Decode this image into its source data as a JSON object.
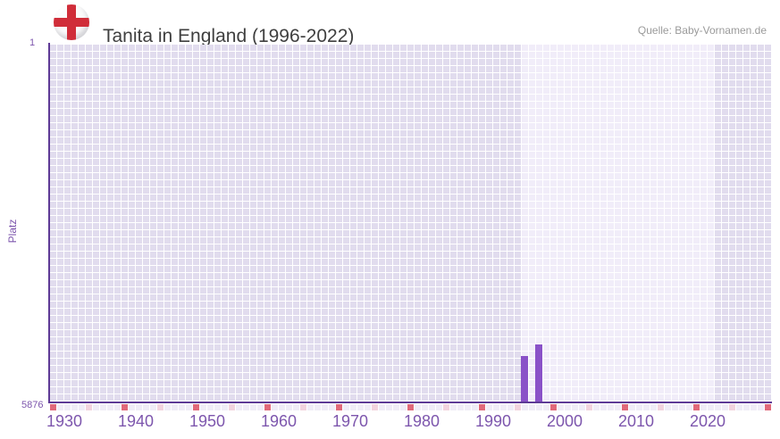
{
  "header": {
    "title": "Tanita in England (1996-2022)",
    "source": "Quelle: Baby-Vornamen.de",
    "flag_icon": "england-flag"
  },
  "y_axis": {
    "title": "Platz",
    "top_label": "1",
    "bottom_label": "5876"
  },
  "chart_data": {
    "type": "bar",
    "title": "Tanita in England (1996-2022)",
    "xlabel": "",
    "ylabel": "Platz",
    "y_inverted": true,
    "ylim": [
      1,
      5876
    ],
    "x_range": [
      1930,
      2030
    ],
    "x_tick_labels": [
      "1930",
      "1940",
      "1950",
      "1960",
      "1970",
      "1980",
      "1990",
      "2000",
      "2010",
      "2020"
    ],
    "decade_tick_years": [
      1930,
      1940,
      1950,
      1960,
      1970,
      1980,
      1990,
      2000,
      2010,
      2020,
      2030
    ],
    "half_decade_tick_years": [
      1935,
      1945,
      1955,
      1965,
      1975,
      1985,
      1995,
      2005,
      2015,
      2025
    ],
    "highlight_band_years": [
      1996,
      2022
    ],
    "grid": true,
    "legend": false,
    "series": [
      {
        "name": "Platz",
        "points": [
          {
            "year": 1996,
            "rank": 5130
          },
          {
            "year": 1998,
            "rank": 4930
          }
        ]
      }
    ],
    "colors": {
      "bar_color": "#8a52c8",
      "axis_line_color": "#5e3a96",
      "grid_cell_color": "#e1dcee",
      "band_cell_color": "#f1edf9",
      "decade_tick_color": "#e0697a",
      "half_decade_tick_color": "#f2d3de",
      "axis_label_color": "#7d56ad",
      "title_color": "#3f3f3f",
      "source_color": "#9a9a9a",
      "flag_red": "#d02d39"
    }
  }
}
